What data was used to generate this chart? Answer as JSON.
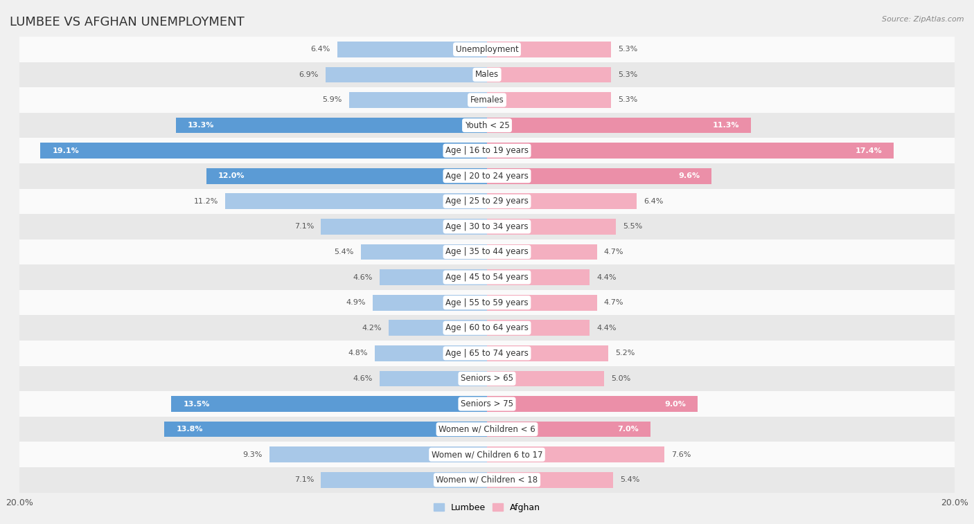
{
  "title": "LUMBEE VS AFGHAN UNEMPLOYMENT",
  "source": "Source: ZipAtlas.com",
  "categories": [
    "Unemployment",
    "Males",
    "Females",
    "Youth < 25",
    "Age | 16 to 19 years",
    "Age | 20 to 24 years",
    "Age | 25 to 29 years",
    "Age | 30 to 34 years",
    "Age | 35 to 44 years",
    "Age | 45 to 54 years",
    "Age | 55 to 59 years",
    "Age | 60 to 64 years",
    "Age | 65 to 74 years",
    "Seniors > 65",
    "Seniors > 75",
    "Women w/ Children < 6",
    "Women w/ Children 6 to 17",
    "Women w/ Children < 18"
  ],
  "lumbee_values": [
    6.4,
    6.9,
    5.9,
    13.3,
    19.1,
    12.0,
    11.2,
    7.1,
    5.4,
    4.6,
    4.9,
    4.2,
    4.8,
    4.6,
    13.5,
    13.8,
    9.3,
    7.1
  ],
  "afghan_values": [
    5.3,
    5.3,
    5.3,
    11.3,
    17.4,
    9.6,
    6.4,
    5.5,
    4.7,
    4.4,
    4.7,
    4.4,
    5.2,
    5.0,
    9.0,
    7.0,
    7.6,
    5.4
  ],
  "lumbee_color": "#a8c8e8",
  "afghan_color": "#f4afc0",
  "lumbee_highlight_color": "#5b9bd5",
  "afghan_highlight_color": "#eb8fa8",
  "highlight_rows": [
    3,
    4,
    5,
    14,
    15
  ],
  "axis_limit": 20.0,
  "bg_color": "#f0f0f0",
  "row_bg_light": "#fafafa",
  "row_bg_dark": "#e8e8e8",
  "bar_height": 0.62,
  "title_fontsize": 13,
  "label_fontsize": 8.5,
  "value_fontsize": 8.0
}
